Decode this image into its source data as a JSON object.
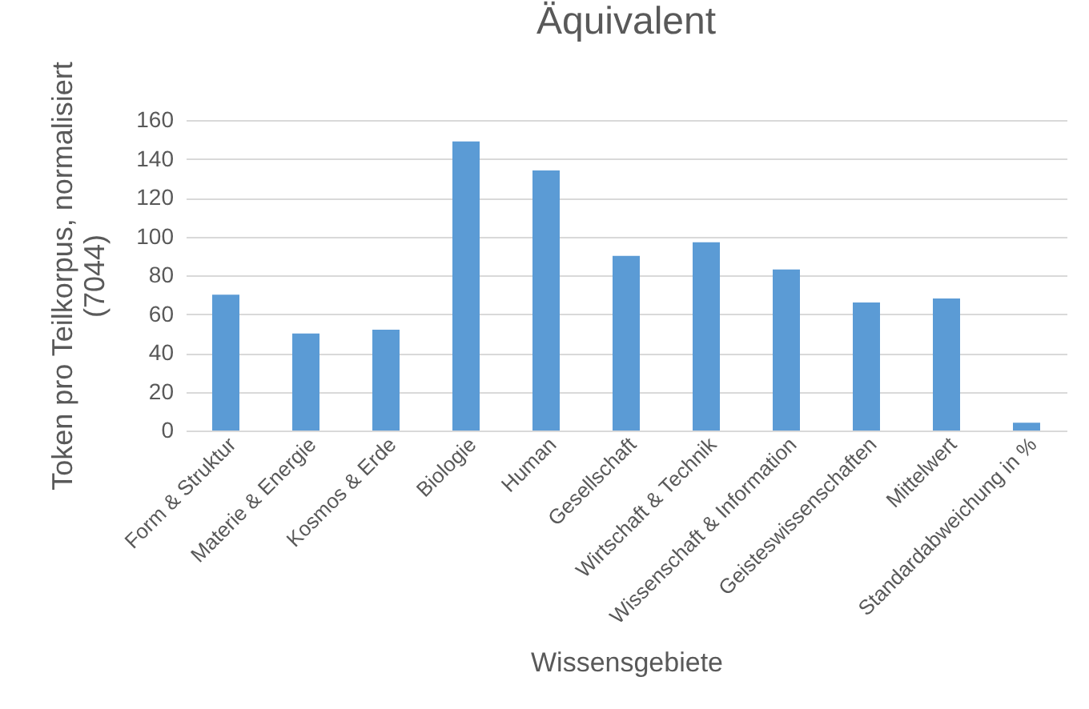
{
  "chart_data": {
    "type": "bar",
    "title": "Äquivalent",
    "xlabel": "Wissensgebiete",
    "ylabel": "Token pro Teilkorpus, normalisiert\n(7044)",
    "categories": [
      "Form & Struktur",
      "Materie & Energie",
      "Kosmos & Erde",
      "Biologie",
      "Human",
      "Gesellschaft",
      "Wirtschaft & Technik",
      "Wissenschaft & Information",
      "Geisteswissenschaften",
      "Mittelwert",
      "Standardabweichung in %"
    ],
    "values": [
      70,
      50,
      52,
      149,
      134,
      90,
      97,
      83,
      66,
      68,
      4
    ],
    "color": "#5b9bd5",
    "ylim": [
      0,
      160
    ],
    "yticks": [
      0,
      20,
      40,
      60,
      80,
      100,
      120,
      140,
      160
    ],
    "grid": "y"
  }
}
